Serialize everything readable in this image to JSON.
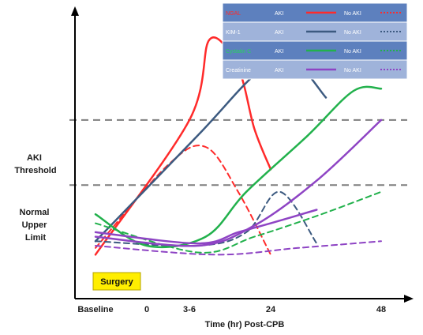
{
  "chart_data": {
    "type": "line",
    "xlabel": "Time (hr) Post-CPB",
    "x_ticks": [
      "Baseline",
      "0",
      "3-6",
      "24",
      "48"
    ],
    "ylabel": "",
    "reference_lines": [
      {
        "label_lines": [
          "AKI",
          "Threshold"
        ],
        "level": 0.62
      },
      {
        "label_lines": [
          "Normal",
          "Upper",
          "Limit"
        ],
        "level": 0.33
      }
    ],
    "annotation": "Surgery",
    "legend_position": "top-right",
    "legend": [
      {
        "marker": "NGAL",
        "aki": "AKI",
        "no_aki": "No AKI",
        "color": "#ff2a2a"
      },
      {
        "marker": "KIM-1",
        "aki": "AKI",
        "no_aki": "No AKI",
        "color": "#3c5a80"
      },
      {
        "marker": "Cystatin C",
        "aki": "AKI",
        "no_aki": "No AKI",
        "color": "#22b14c"
      },
      {
        "marker": "Creatinine",
        "aki": "AKI",
        "no_aki": "No AKI",
        "color": "#8e44c4"
      }
    ],
    "series": [
      {
        "marker": "NGAL",
        "group": "AKI",
        "style": "solid",
        "color": "#ff2a2a",
        "points": [
          [
            -4,
            0.02
          ],
          [
            4,
            0.62
          ],
          [
            9,
            0.98
          ],
          [
            16,
            0.85
          ],
          [
            20,
            0.58
          ],
          [
            24,
            0.4
          ]
        ]
      },
      {
        "marker": "NGAL",
        "group": "No AKI",
        "style": "dashed",
        "color": "#ff2a2a",
        "points": [
          [
            -4,
            0.05
          ],
          [
            2,
            0.42
          ],
          [
            8,
            0.5
          ],
          [
            16,
            0.3
          ],
          [
            24,
            0.02
          ]
        ]
      },
      {
        "marker": "KIM-1",
        "group": "AKI",
        "style": "solid",
        "color": "#3c5a80",
        "points": [
          [
            -4,
            0.08
          ],
          [
            6,
            0.55
          ],
          [
            20,
            0.82
          ],
          [
            28,
            0.9
          ],
          [
            36,
            0.72
          ]
        ]
      },
      {
        "marker": "KIM-1",
        "group": "No AKI",
        "style": "dashed",
        "color": "#3c5a80",
        "points": [
          [
            -4,
            0.08
          ],
          [
            6,
            0.06
          ],
          [
            18,
            0.12
          ],
          [
            26,
            0.3
          ],
          [
            34,
            0.07
          ]
        ]
      },
      {
        "marker": "Cystatin C",
        "group": "AKI",
        "style": "solid",
        "color": "#22b14c",
        "points": [
          [
            -4,
            0.2
          ],
          [
            0,
            0.06
          ],
          [
            8,
            0.1
          ],
          [
            18,
            0.3
          ],
          [
            32,
            0.55
          ],
          [
            42,
            0.75
          ],
          [
            48,
            0.76
          ]
        ]
      },
      {
        "marker": "Cystatin C",
        "group": "No AKI",
        "style": "dashed",
        "color": "#22b14c",
        "points": [
          [
            -4,
            0.16
          ],
          [
            6,
            0.03
          ],
          [
            20,
            0.1
          ],
          [
            35,
            0.2
          ],
          [
            48,
            0.3
          ]
        ]
      },
      {
        "marker": "Creatinine",
        "group": "AKI",
        "style": "solid",
        "color": "#8e44c4",
        "points": [
          [
            -4,
            0.1
          ],
          [
            6,
            0.06
          ],
          [
            20,
            0.15
          ],
          [
            34,
            0.35
          ],
          [
            48,
            0.62
          ]
        ]
      },
      {
        "marker": "Creatinine",
        "group": "No AKI",
        "style": "dashed",
        "color": "#8e44c4",
        "points": [
          [
            -4,
            0.06
          ],
          [
            10,
            0.02
          ],
          [
            30,
            0.05
          ],
          [
            48,
            0.08
          ]
        ]
      },
      {
        "marker": "Creatinine",
        "group": "No AKI",
        "style": "solid",
        "color": "#8e44c4",
        "points": [
          [
            -4,
            0.12
          ],
          [
            6,
            0.07
          ],
          [
            16,
            0.12
          ],
          [
            24,
            0.16
          ],
          [
            34,
            0.22
          ]
        ]
      }
    ]
  }
}
